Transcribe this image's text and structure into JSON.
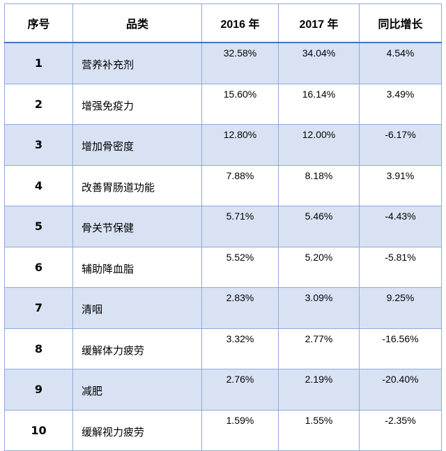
{
  "headers": [
    "序号",
    "品类",
    "2016 年",
    "2017 年",
    "同比增长"
  ],
  "rows": [
    {
      "no": "1",
      "category": "营养补充剂",
      "y2016": "32.58%",
      "y2017": "34.04%",
      "growth": "4.54%"
    },
    {
      "no": "2",
      "category": "增强免疫力",
      "y2016": "15.60%",
      "y2017": "16.14%",
      "growth": "3.49%"
    },
    {
      "no": "3",
      "category": "增加骨密度",
      "y2016": "12.80%",
      "y2017": "12.00%",
      "growth": "-6.17%"
    },
    {
      "no": "4",
      "category": "改善胃肠道功能",
      "y2016": "7.88%",
      "y2017": "8.18%",
      "growth": "3.91%"
    },
    {
      "no": "5",
      "category": "骨关节保健",
      "y2016": "5.71%",
      "y2017": "5.46%",
      "growth": "-4.43%"
    },
    {
      "no": "6",
      "category": "辅助降血脂",
      "y2016": "5.52%",
      "y2017": "5.20%",
      "growth": "-5.81%"
    },
    {
      "no": "7",
      "category": "清咽",
      "y2016": "2.83%",
      "y2017": "3.09%",
      "growth": "9.25%"
    },
    {
      "no": "8",
      "category": "缓解体力疲劳",
      "y2016": "3.32%",
      "y2017": "2.77%",
      "growth": "-16.56%"
    },
    {
      "no": "9",
      "category": "减肥",
      "y2016": "2.76%",
      "y2017": "2.19%",
      "growth": "-20.40%"
    },
    {
      "no": "10",
      "category": "缓解视力疲劳",
      "y2016": "1.59%",
      "y2017": "1.55%",
      "growth": "-2.35%"
    }
  ],
  "colors": {
    "shade": "#d9e2f3",
    "border": "#8eaadb",
    "header_rule": "#4472c4"
  }
}
